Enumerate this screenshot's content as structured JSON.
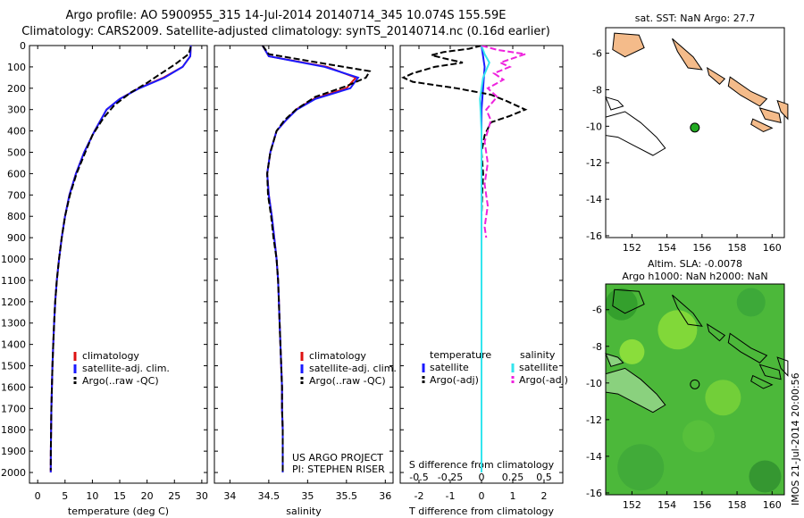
{
  "header": {
    "line1": "Argo profile: AO 5900955_315 14-Jul-2014 20140714_345 10.074S 155.59E",
    "line2": "Climatology: CARS2009. Satellite-adjusted climatology: synTS_20140714.nc (0.16d earlier)"
  },
  "stamp": "IMOS 21-Jul-2014 20:00:56",
  "colors": {
    "climatology": "#dd1111",
    "satellite": "#1a1aff",
    "argo": "#000000",
    "salinity_satellite": "#33e5ee",
    "salinity_argo": "#ee22dd",
    "land": "#f4bb8a",
    "marker": "#22aa22"
  },
  "chart_data": [
    {
      "type": "line",
      "name": "temperature-profile",
      "xlabel": "temperature (deg C)",
      "ylim": [
        2050,
        0
      ],
      "xlim": [
        -1.5,
        31
      ],
      "x_ticks": [
        0,
        5,
        10,
        15,
        20,
        25,
        30
      ],
      "y_ticks": [
        0,
        100,
        200,
        300,
        400,
        500,
        600,
        700,
        800,
        900,
        1000,
        1100,
        1200,
        1300,
        1400,
        1500,
        1600,
        1700,
        1800,
        1900,
        2000
      ],
      "legend": {
        "location": "center-right",
        "labels": [
          "climatology",
          "satellite-adj. clim.",
          "Argo(..raw -QC)"
        ]
      },
      "series": [
        {
          "name": "climatology",
          "style": "solid",
          "points": [
            [
              28,
              0
            ],
            [
              27.9,
              50
            ],
            [
              26.5,
              100
            ],
            [
              23,
              150
            ],
            [
              18.5,
              200
            ],
            [
              15,
              250
            ],
            [
              12.6,
              300
            ],
            [
              10.4,
              400
            ],
            [
              8.5,
              500
            ],
            [
              7,
              600
            ],
            [
              5.8,
              700
            ],
            [
              5,
              800
            ],
            [
              4.4,
              900
            ],
            [
              3.9,
              1000
            ],
            [
              3.5,
              1100
            ],
            [
              3.2,
              1200
            ],
            [
              3,
              1300
            ],
            [
              2.85,
              1400
            ],
            [
              2.7,
              1500
            ],
            [
              2.6,
              1600
            ],
            [
              2.5,
              1700
            ],
            [
              2.45,
              1800
            ],
            [
              2.4,
              1900
            ],
            [
              2.38,
              2000
            ]
          ]
        },
        {
          "name": "satellite-adj. clim.",
          "style": "solid",
          "points": [
            [
              28,
              0
            ],
            [
              27.9,
              50
            ],
            [
              26.5,
              100
            ],
            [
              23.2,
              150
            ],
            [
              18.6,
              200
            ],
            [
              15,
              250
            ],
            [
              12.6,
              300
            ],
            [
              10.4,
              400
            ],
            [
              8.5,
              500
            ],
            [
              7,
              600
            ],
            [
              5.8,
              700
            ],
            [
              5,
              800
            ],
            [
              4.4,
              900
            ],
            [
              3.9,
              1000
            ],
            [
              3.5,
              1100
            ],
            [
              3.2,
              1200
            ],
            [
              3,
              1300
            ],
            [
              2.85,
              1400
            ],
            [
              2.7,
              1500
            ],
            [
              2.6,
              1600
            ],
            [
              2.5,
              1700
            ],
            [
              2.45,
              1800
            ],
            [
              2.4,
              1900
            ],
            [
              2.38,
              2000
            ]
          ]
        },
        {
          "name": "Argo(..raw -QC)",
          "style": "dashed",
          "points": [
            [
              28,
              5
            ],
            [
              27.6,
              40
            ],
            [
              25,
              90
            ],
            [
              22,
              140
            ],
            [
              20,
              175
            ],
            [
              17,
              220
            ],
            [
              14,
              280
            ],
            [
              12,
              340
            ],
            [
              10,
              420
            ],
            [
              8.7,
              500
            ],
            [
              7.1,
              600
            ],
            [
              5.9,
              700
            ],
            [
              5,
              800
            ],
            [
              4.4,
              900
            ],
            [
              3.9,
              1000
            ],
            [
              3.5,
              1100
            ],
            [
              3.2,
              1200
            ],
            [
              3,
              1300
            ],
            [
              2.85,
              1400
            ],
            [
              2.7,
              1500
            ],
            [
              2.6,
              1600
            ],
            [
              2.5,
              1700
            ],
            [
              2.45,
              1800
            ],
            [
              2.4,
              1900
            ],
            [
              2.38,
              1990
            ]
          ]
        }
      ]
    },
    {
      "type": "line",
      "name": "salinity-profile",
      "xlabel": "salinity",
      "ylim": [
        2050,
        0
      ],
      "xlim": [
        33.8,
        36.1
      ],
      "x_ticks": [
        34,
        34.5,
        35,
        35.5,
        36
      ],
      "legend": {
        "location": "center-right",
        "labels": [
          "climatology",
          "satellite-adj. clim.",
          "Argo(..raw -QC)"
        ]
      },
      "annotation": [
        "US ARGO PROJECT",
        "PI: STEPHEN RISER"
      ],
      "series": [
        {
          "name": "climatology",
          "style": "solid",
          "points": [
            [
              34.42,
              0
            ],
            [
              34.5,
              50
            ],
            [
              35.25,
              100
            ],
            [
              35.62,
              150
            ],
            [
              35.5,
              200
            ],
            [
              35.08,
              250
            ],
            [
              34.85,
              300
            ],
            [
              34.72,
              350
            ],
            [
              34.6,
              400
            ],
            [
              34.52,
              500
            ],
            [
              34.48,
              600
            ],
            [
              34.5,
              700
            ],
            [
              34.54,
              800
            ],
            [
              34.57,
              900
            ],
            [
              34.6,
              1000
            ],
            [
              34.62,
              1100
            ],
            [
              34.63,
              1200
            ],
            [
              34.64,
              1300
            ],
            [
              34.65,
              1400
            ],
            [
              34.66,
              1500
            ],
            [
              34.67,
              1600
            ],
            [
              34.67,
              1700
            ],
            [
              34.68,
              1800
            ],
            [
              34.68,
              1900
            ],
            [
              34.68,
              2000
            ]
          ]
        },
        {
          "name": "satellite-adj. clim.",
          "style": "solid",
          "points": [
            [
              34.42,
              0
            ],
            [
              34.5,
              50
            ],
            [
              35.22,
              100
            ],
            [
              35.65,
              150
            ],
            [
              35.55,
              200
            ],
            [
              35.1,
              250
            ],
            [
              34.86,
              300
            ],
            [
              34.72,
              350
            ],
            [
              34.6,
              400
            ],
            [
              34.52,
              500
            ],
            [
              34.48,
              600
            ],
            [
              34.5,
              700
            ],
            [
              34.54,
              800
            ],
            [
              34.57,
              900
            ],
            [
              34.6,
              1000
            ],
            [
              34.62,
              1100
            ],
            [
              34.63,
              1200
            ],
            [
              34.64,
              1300
            ],
            [
              34.65,
              1400
            ],
            [
              34.66,
              1500
            ],
            [
              34.67,
              1600
            ],
            [
              34.67,
              1700
            ],
            [
              34.68,
              1800
            ],
            [
              34.68,
              1900
            ],
            [
              34.68,
              2000
            ]
          ]
        },
        {
          "name": "Argo(..raw -QC)",
          "style": "dashed",
          "points": [
            [
              34.42,
              0
            ],
            [
              34.5,
              40
            ],
            [
              35.3,
              90
            ],
            [
              35.8,
              120
            ],
            [
              35.75,
              150
            ],
            [
              35.5,
              190
            ],
            [
              35.1,
              240
            ],
            [
              34.85,
              300
            ],
            [
              34.7,
              350
            ],
            [
              34.6,
              400
            ],
            [
              34.52,
              500
            ],
            [
              34.48,
              600
            ],
            [
              34.49,
              700
            ],
            [
              34.53,
              800
            ],
            [
              34.56,
              900
            ],
            [
              34.6,
              1000
            ],
            [
              34.62,
              1100
            ],
            [
              34.63,
              1200
            ],
            [
              34.64,
              1300
            ],
            [
              34.65,
              1400
            ],
            [
              34.66,
              1500
            ],
            [
              34.67,
              1600
            ],
            [
              34.67,
              1700
            ],
            [
              34.68,
              1800
            ],
            [
              34.68,
              1900
            ],
            [
              34.68,
              2000
            ]
          ]
        }
      ]
    },
    {
      "type": "line",
      "name": "difference-profile",
      "xlabel": "T difference from climatology",
      "xlabel2": "S difference from climatology",
      "ylim": [
        2050,
        0
      ],
      "xlim": [
        -2.6,
        2.6
      ],
      "x_ticks": [
        -2,
        -1,
        0,
        1,
        2
      ],
      "x2_ticks": [
        -0.5,
        -0.25,
        0,
        0.25,
        0.5
      ],
      "legend": {
        "temperature_title": "temperature",
        "salinity_title": "salinity",
        "labels": [
          "satellite",
          "Argo(-adj)",
          "satellite",
          "Argo(-adj)"
        ]
      },
      "series": [
        {
          "name": "temperature satellite",
          "style": "solid",
          "points": [
            [
              0,
              0
            ],
            [
              0.1,
              100
            ],
            [
              0.05,
              200
            ],
            [
              0,
              300
            ],
            [
              0,
              2000
            ]
          ]
        },
        {
          "name": "temperature Argo(-adj)",
          "style": "dashed",
          "points": [
            [
              0,
              0
            ],
            [
              -0.4,
              15
            ],
            [
              -1.2,
              30
            ],
            [
              -1.6,
              45
            ],
            [
              -1.2,
              60
            ],
            [
              -0.6,
              80
            ],
            [
              -1.5,
              100
            ],
            [
              -2.2,
              130
            ],
            [
              -2.5,
              150
            ],
            [
              -2.2,
              170
            ],
            [
              -0.8,
              200
            ],
            [
              0.3,
              230
            ],
            [
              0.8,
              260
            ],
            [
              1.4,
              300
            ],
            [
              0.9,
              330
            ],
            [
              0.3,
              360
            ],
            [
              0.1,
              420
            ],
            [
              0,
              500
            ],
            [
              0.05,
              600
            ],
            [
              0.02,
              700
            ],
            [
              0,
              800
            ],
            [
              0,
              900
            ],
            [
              0,
              2000
            ]
          ]
        },
        {
          "name": "salinity satellite",
          "style": "solid",
          "points": [
            [
              0,
              0
            ],
            [
              0.1,
              40
            ],
            [
              0.25,
              80
            ],
            [
              0.05,
              150
            ],
            [
              -0.05,
              250
            ],
            [
              0,
              400
            ],
            [
              0,
              2000
            ]
          ]
        },
        {
          "name": "salinity Argo(-adj)",
          "style": "dashed",
          "points": [
            [
              0,
              0
            ],
            [
              0.5,
              20
            ],
            [
              1.4,
              40
            ],
            [
              1.0,
              60
            ],
            [
              0.6,
              80
            ],
            [
              0.9,
              100
            ],
            [
              0.4,
              130
            ],
            [
              0.7,
              160
            ],
            [
              0.2,
              200
            ],
            [
              0.5,
              240
            ],
            [
              0.15,
              300
            ],
            [
              0.3,
              350
            ],
            [
              0.1,
              450
            ],
            [
              0.2,
              550
            ],
            [
              0.1,
              650
            ],
            [
              0.2,
              750
            ],
            [
              0.1,
              850
            ],
            [
              0.15,
              900
            ]
          ]
        }
      ]
    },
    {
      "type": "map",
      "name": "sst-map",
      "title": "sat. SST: NaN Argo: 27.7",
      "xlim": [
        150.5,
        160.7
      ],
      "ylim": [
        -16.1,
        -4.6
      ],
      "x_ticks": [
        152,
        154,
        156,
        158,
        160
      ],
      "y_ticks": [
        -6,
        -8,
        -10,
        -12,
        -14,
        -16
      ],
      "marker": {
        "lon": 155.59,
        "lat": -10.074
      }
    },
    {
      "type": "map",
      "name": "altimetry-map",
      "title": "Altim. SLA: -0.0078",
      "subtitle": "Argo h1000: NaN h2000: NaN",
      "xlim": [
        150.5,
        160.7
      ],
      "ylim": [
        -16.1,
        -4.6
      ],
      "x_ticks": [
        152,
        154,
        156,
        158,
        160
      ],
      "y_ticks": [
        -6,
        -8,
        -10,
        -12,
        -14,
        -16
      ],
      "marker": {
        "lon": 155.59,
        "lat": -10.074
      }
    }
  ]
}
